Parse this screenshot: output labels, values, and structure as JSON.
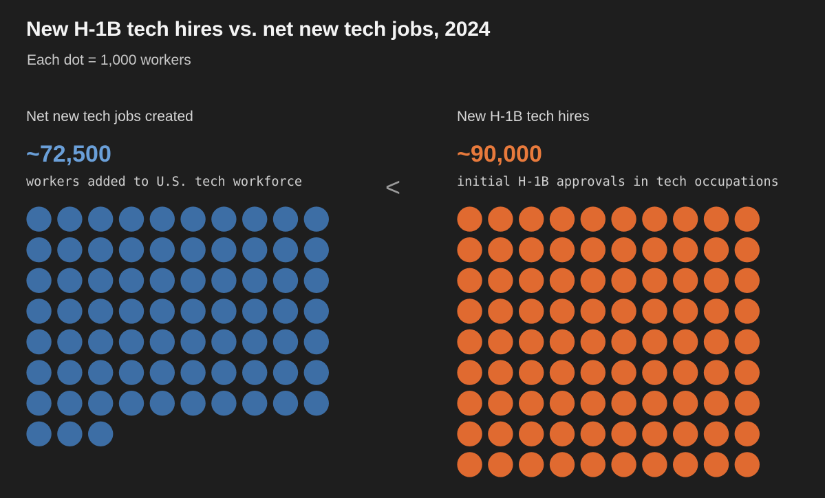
{
  "header": {
    "title": "New H-1B tech hires vs. net new tech jobs, 2024",
    "subtitle": "Each dot = 1,000 workers"
  },
  "comparator": "<",
  "colors": {
    "background": "#1e1e1e",
    "jobs": "#3d6ea5",
    "jobs_value_text": "#6a9fd8",
    "h1b": "#e06a30",
    "h1b_value_text": "#e87a3c"
  },
  "panels": {
    "left": {
      "label": "Net new tech jobs created",
      "value": "~72,500",
      "caption": "workers added to U.S. tech workforce"
    },
    "right": {
      "label": "New H-1B tech hires",
      "value": "~90,000",
      "caption": "initial H-1B approvals in tech occupations"
    }
  },
  "chart_data": {
    "type": "waffle",
    "title": "New H-1B tech hires vs. net new tech jobs, 2024",
    "subtitle": "Each dot = 1,000 workers",
    "unit_per_dot": 1000,
    "dots_per_row": 10,
    "series": [
      {
        "name": "Net new tech jobs created",
        "value": 72500,
        "dots": 73,
        "color": "#3d6ea5"
      },
      {
        "name": "New H-1B tech hires",
        "value": 90000,
        "dots": 90,
        "color": "#e06a30"
      }
    ]
  }
}
